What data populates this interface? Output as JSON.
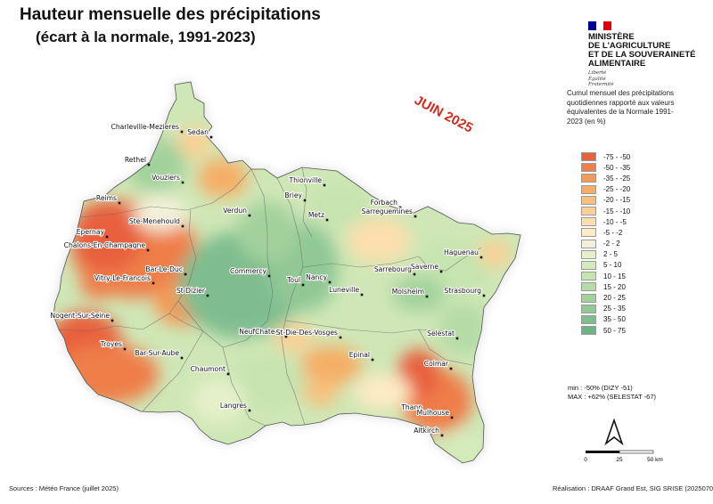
{
  "title": "Hauteur mensuelle des précipitations",
  "subtitle": "(écart à la normale, 1991-2023)",
  "period_label": "JUIN 2025",
  "ministry": {
    "lines": [
      "MINISTÈRE",
      "DE L'AGRICULTURE",
      "ET DE LA SOUVERAINETÉ",
      "ALIMENTAIRE"
    ],
    "motto": [
      "Liberté",
      "Égalité",
      "Fraternité"
    ],
    "flag_colors": [
      "#000091",
      "#ffffff",
      "#e1000f"
    ]
  },
  "legend": {
    "title": "Cumul mensuel des précipitations quotidiennes rapporté aux valeurs équivalentes de la Normale 1991-2023 (en %)",
    "classes": [
      {
        "label": "-75 - -50",
        "color": "#e8603c"
      },
      {
        "label": "-50 - -35",
        "color": "#ef7e4a"
      },
      {
        "label": "-35 - -25",
        "color": "#f39a56"
      },
      {
        "label": "-25 - -20",
        "color": "#f6ae66"
      },
      {
        "label": "-20 - -15",
        "color": "#f8c07c"
      },
      {
        "label": "-15 - -10",
        "color": "#fad094"
      },
      {
        "label": "-10 - -5",
        "color": "#fcdfad"
      },
      {
        "label": "-5 - -2",
        "color": "#fdebc4"
      },
      {
        "label": "-2 - 2",
        "color": "#f4f1da"
      },
      {
        "label": "2 - 5",
        "color": "#e5f0c8"
      },
      {
        "label": "5 - 10",
        "color": "#d6ebbb"
      },
      {
        "label": "10 - 15",
        "color": "#c6e4b0"
      },
      {
        "label": "15 - 20",
        "color": "#b5dba6"
      },
      {
        "label": "20 - 25",
        "color": "#a3d19c"
      },
      {
        "label": "25 - 35",
        "color": "#91c895"
      },
      {
        "label": "35 - 50",
        "color": "#7fbd8f"
      },
      {
        "label": "50 - 75",
        "color": "#6db38a"
      }
    ]
  },
  "min_text": "min : -50% (DIZY -51)",
  "max_text": "MAX : +62% (SELESTAT -67)",
  "scale": {
    "labels": [
      "0",
      "25",
      "50 km"
    ]
  },
  "north_icon": "north-arrow-icon",
  "sources": "Sources : Météo France (juillet 2025)",
  "realisation": "Réalisation : DRAAF Grand Est, SIG SRISE (20250703)",
  "cities": [
    "Charleville-Mezieres",
    "Sedan",
    "Rethel",
    "Vouziers",
    "Thionville",
    "Forbach",
    "Sarreguemines",
    "Reims",
    "Ste-Menehould",
    "Verdun",
    "Briey",
    "Metz",
    "Epernay",
    "Chalons-En-Champagne",
    "Haguenau",
    "Saverne",
    "Sarrebourg",
    "Vitry-Le-Francois",
    "Bar-Le-Duc",
    "Commercy",
    "Toul",
    "Nancy",
    "Luneville",
    "Strasbourg",
    "St Dizier",
    "Molsheim",
    "Nogent-Sur-Seine",
    "NeufChateau",
    "St-Die-Des-Vosges",
    "Selestat",
    "Troyes",
    "Bar-Sur-Aube",
    "Epinal",
    "Colmar",
    "Chaumont",
    "Langres",
    "Thann",
    "Mulhouse",
    "Altkirch"
  ]
}
